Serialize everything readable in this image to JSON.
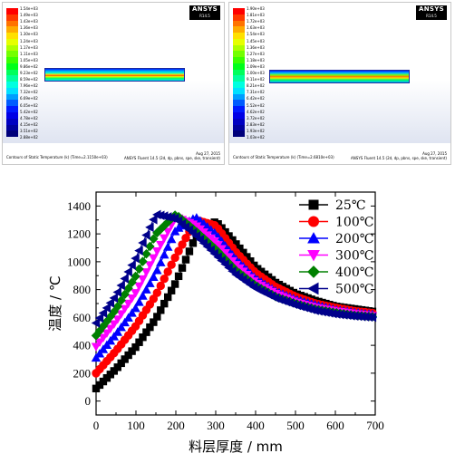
{
  "panels": [
    {
      "logo": "ANSYS",
      "version": "R14.5",
      "colorbar_labels": [
        "1.54e+03",
        "1.49e+03",
        "1.43e+03",
        "1.36e+03",
        "1.30e+03",
        "1.24e+03",
        "1.17e+03",
        "1.11e+03",
        "1.05e+03",
        "9.86e+02",
        "9.23e+02",
        "8.59e+02",
        "7.96e+02",
        "7.32e+02",
        "6.69e+02",
        "6.05e+02",
        "5.42e+02",
        "4.78e+02",
        "4.15e+02",
        "3.51e+02",
        "2.88e+02"
      ],
      "caption": "Contours of Static Temperature (k)  (Time=2.1150e+03)",
      "date": "Aug 27, 2015",
      "solver": "ANSYS Fluent 14.5 (2d, dp, pbns, spe, ske, transient)"
    },
    {
      "logo": "ANSYS",
      "version": "R14.5",
      "colorbar_labels": [
        "1.90e+03",
        "1.81e+03",
        "1.72e+03",
        "1.63e+03",
        "1.54e+03",
        "1.45e+03",
        "1.36e+03",
        "1.27e+03",
        "1.18e+03",
        "1.09e+03",
        "1.00e+03",
        "9.11e+02",
        "8.21e+02",
        "7.31e+02",
        "6.42e+02",
        "5.52e+02",
        "4.62e+02",
        "3.72e+02",
        "2.83e+02",
        "1.93e+02",
        "1.03e+02"
      ],
      "caption": "Contours of Static Temperature (k)  (Time=2.6810e+03)",
      "date": "Aug 27, 2015",
      "solver": "ANSYS Fluent 14.5 (2d, dp, pbns, spe, ske, transient)"
    }
  ],
  "colorbar_colors": [
    "#ff0000",
    "#ff3a00",
    "#ff7300",
    "#ffab00",
    "#ffe000",
    "#e6ff00",
    "#adff00",
    "#73ff00",
    "#3aff00",
    "#00ff1a",
    "#00ff5c",
    "#00ff9e",
    "#00ffe0",
    "#00e0ff",
    "#009eff",
    "#005cff",
    "#001aff",
    "#0000e6",
    "#0000c2",
    "#00009e",
    "#00007a"
  ],
  "chart_data": {
    "type": "line",
    "xlabel": "料层厚度 / mm",
    "ylabel": "温度 / ℃",
    "xlim": [
      0,
      700
    ],
    "ylim": [
      -100,
      1500
    ],
    "xticks": [
      0,
      100,
      200,
      300,
      400,
      500,
      600,
      700
    ],
    "yticks": [
      0,
      200,
      400,
      600,
      800,
      1000,
      1200,
      1400
    ],
    "legend_position": "top-right",
    "x": [
      0,
      50,
      100,
      150,
      200,
      250,
      300,
      350,
      400,
      450,
      500,
      550,
      600,
      650,
      700
    ],
    "series": [
      {
        "name": "25℃",
        "color": "#000000",
        "marker": "square",
        "peak": 270,
        "values": [
          90,
          230,
          390,
          590,
          850,
          1180,
          1290,
          1130,
          960,
          850,
          770,
          720,
          680,
          660,
          640
        ]
      },
      {
        "name": "100℃",
        "color": "#ff0000",
        "marker": "circle",
        "peak": 240,
        "values": [
          200,
          360,
          540,
          760,
          1040,
          1300,
          1260,
          1070,
          920,
          820,
          750,
          700,
          670,
          645,
          630
        ]
      },
      {
        "name": "200℃",
        "color": "#0000ff",
        "marker": "triangle-up",
        "peak": 210,
        "values": [
          310,
          480,
          670,
          920,
          1230,
          1320,
          1200,
          1020,
          880,
          790,
          730,
          690,
          655,
          635,
          620
        ]
      },
      {
        "name": "300℃",
        "color": "#ff00ff",
        "marker": "triangle-down",
        "peak": 190,
        "values": [
          390,
          570,
          780,
          1060,
          1320,
          1260,
          1140,
          980,
          850,
          770,
          710,
          670,
          645,
          625,
          610
        ]
      },
      {
        "name": "400℃",
        "color": "#008000",
        "marker": "diamond",
        "peak": 170,
        "values": [
          470,
          660,
          900,
          1200,
          1340,
          1220,
          1090,
          940,
          830,
          750,
          700,
          660,
          635,
          615,
          605
        ]
      },
      {
        "name": "500℃",
        "color": "#00008b",
        "marker": "triangle-left",
        "peak": 160,
        "values": [
          560,
          760,
          1030,
          1340,
          1310,
          1190,
          1050,
          910,
          810,
          740,
          690,
          650,
          625,
          610,
          600
        ]
      }
    ]
  }
}
